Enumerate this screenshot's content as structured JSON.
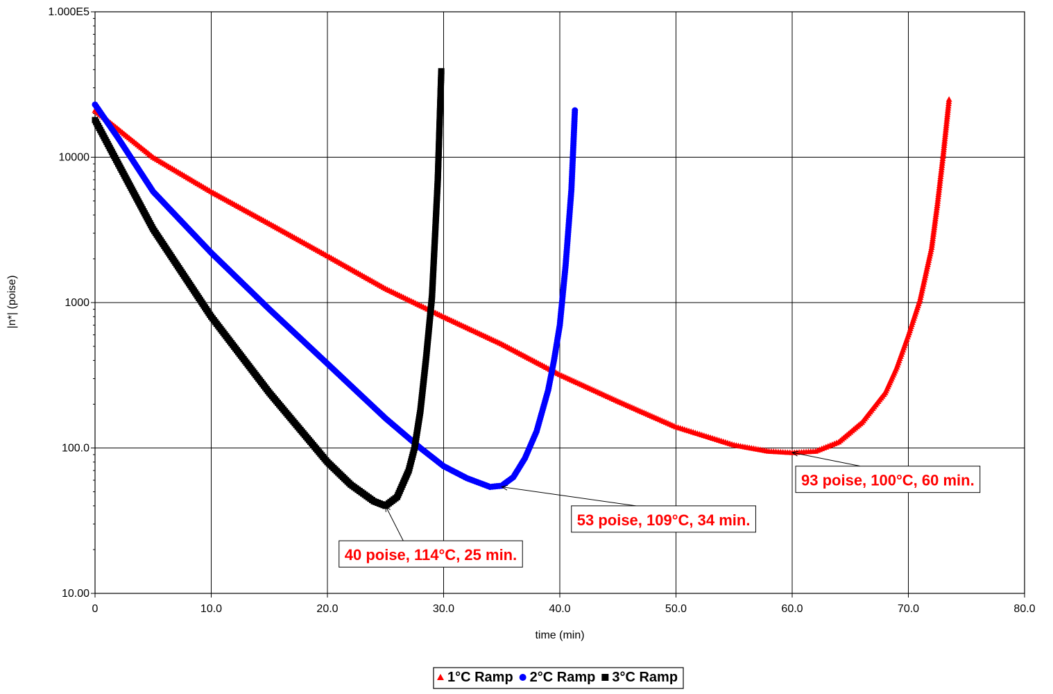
{
  "chart_data": {
    "type": "scatter",
    "title": "",
    "xlabel": "time (min)",
    "ylabel": "|n*| (poise)",
    "xlim": [
      0,
      80
    ],
    "ylim": [
      10,
      100000
    ],
    "y_scale": "log",
    "grid": true,
    "legend_position": "bottom-center",
    "x_ticks": [
      {
        "value": 0,
        "label": "0"
      },
      {
        "value": 10,
        "label": "10.0"
      },
      {
        "value": 20,
        "label": "20.0"
      },
      {
        "value": 30,
        "label": "30.0"
      },
      {
        "value": 40,
        "label": "40.0"
      },
      {
        "value": 50,
        "label": "50.0"
      },
      {
        "value": 60,
        "label": "60.0"
      },
      {
        "value": 70,
        "label": "70.0"
      },
      {
        "value": 80,
        "label": "80.0"
      }
    ],
    "y_ticks": [
      {
        "value": 10,
        "label": "10.00"
      },
      {
        "value": 100,
        "label": "100.0"
      },
      {
        "value": 1000,
        "label": "1000"
      },
      {
        "value": 10000,
        "label": "10000"
      },
      {
        "value": 100000,
        "label": "1.000E5"
      }
    ],
    "series": [
      {
        "name": "1°C Ramp",
        "color": "#ff0000",
        "marker": "triangle",
        "x": [
          0,
          5,
          10,
          15,
          20,
          25,
          30,
          35,
          40,
          45,
          50,
          55,
          58,
          60,
          62,
          64,
          66,
          68,
          69,
          70,
          71,
          72,
          72.5,
          73,
          73.5
        ],
        "y": [
          21000,
          10000,
          5800,
          3500,
          2100,
          1250,
          800,
          520,
          320,
          210,
          140,
          105,
          95,
          93,
          95,
          110,
          150,
          240,
          360,
          600,
          1050,
          2400,
          4800,
          10500,
          25000
        ]
      },
      {
        "name": "2°C Ramp",
        "color": "#0000ff",
        "marker": "circle",
        "x": [
          0,
          2,
          5,
          10,
          15,
          20,
          25,
          28,
          30,
          32,
          34,
          35,
          36,
          37,
          38,
          39,
          39.5,
          40,
          40.5,
          41,
          41.3
        ],
        "y": [
          23000,
          13500,
          5800,
          2200,
          900,
          380,
          160,
          100,
          75,
          62,
          54,
          55,
          63,
          85,
          130,
          250,
          400,
          700,
          1800,
          6000,
          21000
        ]
      },
      {
        "name": "3°C Ramp",
        "color": "#000000",
        "marker": "square",
        "x": [
          0,
          2,
          5,
          10,
          15,
          20,
          22,
          24,
          25,
          26,
          27,
          27.5,
          28,
          28.5,
          29,
          29.3,
          29.5,
          29.8
        ],
        "y": [
          18000,
          9000,
          3200,
          800,
          240,
          80,
          56,
          43,
          40,
          46,
          70,
          100,
          180,
          420,
          1100,
          3300,
          7000,
          39000
        ]
      }
    ],
    "annotations": [
      {
        "text": "93 poise, 100°C, 60 min.",
        "point": [
          60,
          93
        ],
        "box_left_x": 60.3,
        "box_top_y": 75
      },
      {
        "text": "53 poise, 109°C, 34 min.",
        "point": [
          35,
          54
        ],
        "box_left_x": 41,
        "box_top_y": 40
      },
      {
        "text": "40 poise, 114°C, 25 min.",
        "point": [
          25,
          40
        ],
        "box_left_x": 21,
        "box_top_y": 23
      }
    ]
  }
}
